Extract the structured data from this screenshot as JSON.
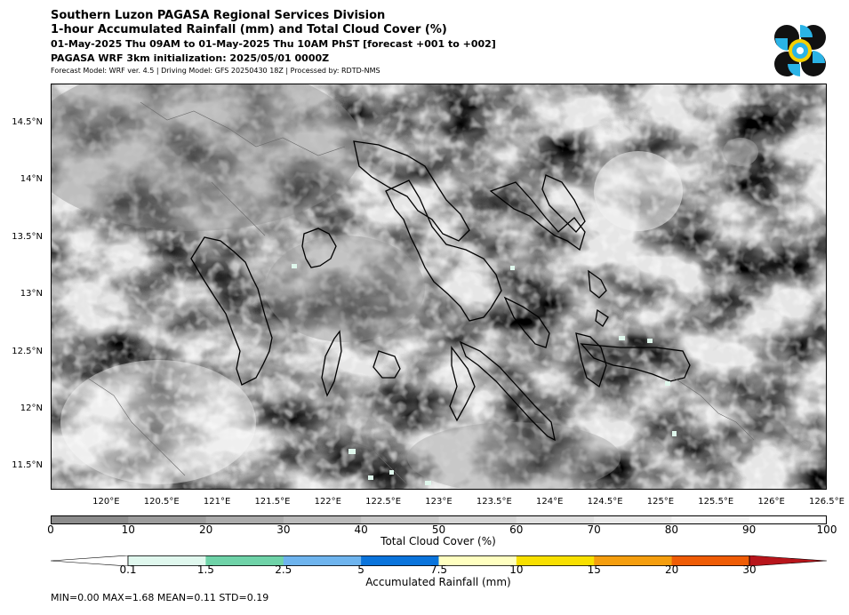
{
  "header": {
    "line1": "Southern Luzon PAGASA Regional Services Division",
    "line2": "1-hour Accumulated Rainfall (mm) and Total Cloud Cover (%)",
    "line3": "01-May-2025 Thu 09AM to 01-May-2025 Thu 10AM PhST [forecast +001 to +002]",
    "line4": "PAGASA WRF 3km initialization: 2025/05/01 0000Z",
    "line5": "Forecast Model: WRF ver. 4.5 | Driving Model: GFS 20250430 18Z | Processed by: RDTD-NMS"
  },
  "logo": {
    "name": "pagasa-logo",
    "colors": [
      "#111111",
      "#2ab3e6",
      "#f5d000"
    ]
  },
  "map": {
    "lon_range": [
      119.5,
      126.5
    ],
    "lat_range": [
      11.3,
      14.85
    ],
    "lat_labels": [
      "14.5°N",
      "14°N",
      "13.5°N",
      "13°N",
      "12.5°N",
      "12°N",
      "11.5°N"
    ],
    "lat_values": [
      14.5,
      14.0,
      13.5,
      13.0,
      12.5,
      12.0,
      11.5
    ],
    "lon_labels": [
      "120°E",
      "120.5°E",
      "121°E",
      "121.5°E",
      "122°E",
      "122.5°E",
      "123°E",
      "123.5°E",
      "124°E",
      "124.5°E",
      "125°E",
      "125.5°E",
      "126°E",
      "126.5°E"
    ],
    "lon_values": [
      120.0,
      120.5,
      121.0,
      121.5,
      122.0,
      122.5,
      123.0,
      123.5,
      124.0,
      124.5,
      125.0,
      125.5,
      126.0,
      126.5
    ]
  },
  "cloud_colorbar": {
    "label": "Total Cloud Cover (%)",
    "ticks": [
      "0",
      "10",
      "20",
      "30",
      "40",
      "50",
      "60",
      "70",
      "80",
      "90",
      "100"
    ],
    "colors": [
      "#8c8c8c",
      "#9c9c9c",
      "#ababab",
      "#bababa",
      "#c8c8c8",
      "#d5d5d5",
      "#e0e0e0",
      "#eaeaea",
      "#f4f4f4",
      "#ffffff"
    ]
  },
  "rain_colorbar": {
    "label": "Accumulated Rainfall (mm)",
    "ticks": [
      "0.1",
      "1.5",
      "2.5",
      "5",
      "7.5",
      "10",
      "15",
      "20",
      "30"
    ],
    "colors": [
      "#ffffff",
      "#e0f8ee",
      "#6fd3a8",
      "#6eb4ee",
      "#0a74dc",
      "#ffffc0",
      "#f8e000",
      "#f59e0e",
      "#ef5c05",
      "#b8151b"
    ]
  },
  "stats": "MIN=0.00   MAX=1.68   MEAN=0.11   STD=0.19"
}
